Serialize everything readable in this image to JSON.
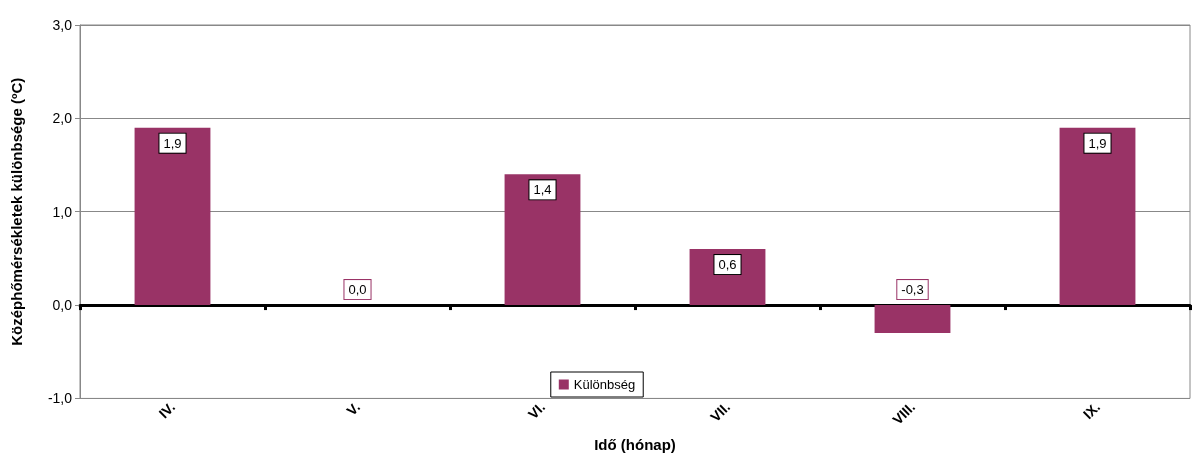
{
  "chart_data": {
    "type": "bar",
    "xlabel": "Idő (hónap)",
    "ylabel": "Középhőmérsékletek különbsége (ºC)",
    "categories": [
      "IV.",
      "V.",
      "VI.",
      "VII.",
      "VIII.",
      "IX."
    ],
    "series": [
      {
        "name": "Különbség",
        "color": "#993366",
        "values": [
          1.9,
          0.0,
          1.4,
          0.6,
          -0.3,
          1.9
        ],
        "value_labels": [
          "1,9",
          "0,0",
          "1,4",
          "0,6",
          "-0,3",
          "1,9"
        ]
      }
    ],
    "ylim": [
      -1,
      3
    ],
    "yticks": [
      {
        "value": -1,
        "label": "-1,0"
      },
      {
        "value": 0,
        "label": "0,0"
      },
      {
        "value": 1,
        "label": "1,0"
      },
      {
        "value": 2,
        "label": "2,0"
      },
      {
        "value": 3,
        "label": "3,0"
      }
    ],
    "grid": "y",
    "legend": "bottom"
  }
}
